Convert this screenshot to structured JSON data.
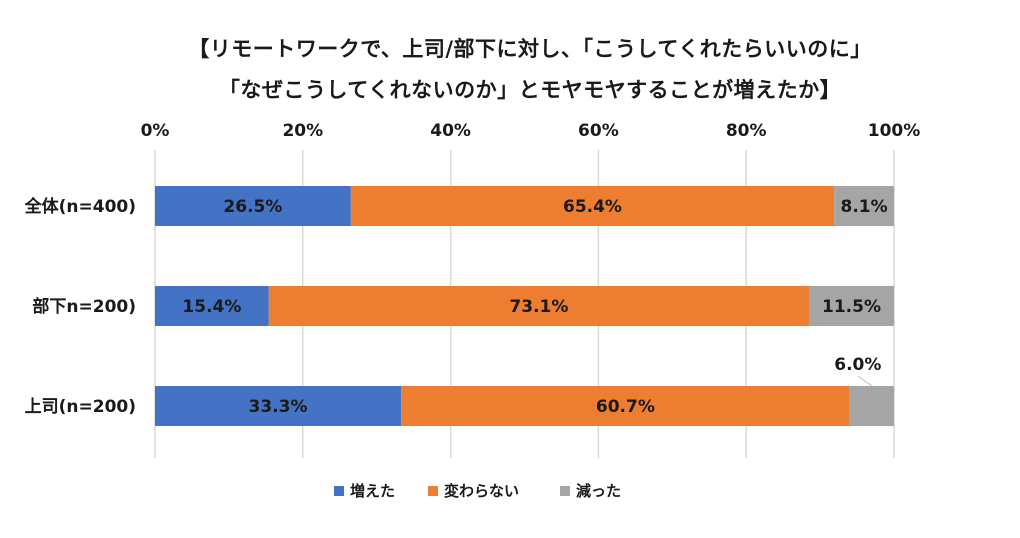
{
  "title": {
    "line1": "【リモートワークで、上司/部下に対し、「こうしてくれたらいいのに」",
    "line2": "「なぜこうしてくれないのか」とモヤモヤすることが増えたか】"
  },
  "chart_data": {
    "type": "bar",
    "orientation": "horizontal",
    "stacked": true,
    "categories": [
      "全体(n=400)",
      "部下n=200)",
      "上司(n=200)"
    ],
    "series": [
      {
        "name": "増えた",
        "color": "#4472c4",
        "values": [
          26.5,
          15.4,
          33.3
        ],
        "labels": [
          "26.5%",
          "15.4%",
          "33.3%"
        ]
      },
      {
        "name": "変わらない",
        "color": "#ed7d31",
        "values": [
          65.4,
          73.1,
          60.7
        ],
        "labels": [
          "65.4%",
          "73.1%",
          "60.7%"
        ]
      },
      {
        "name": "減った",
        "color": "#a5a5a5",
        "values": [
          8.1,
          11.5,
          6.0
        ],
        "labels": [
          "8.1%",
          "11.5%",
          "6.0%"
        ]
      }
    ],
    "xlim": [
      0,
      100
    ],
    "xticks": [
      "0%",
      "20%",
      "40%",
      "60%",
      "80%",
      "100%"
    ],
    "axis_position": "top",
    "grid": true,
    "legend_position": "bottom"
  }
}
